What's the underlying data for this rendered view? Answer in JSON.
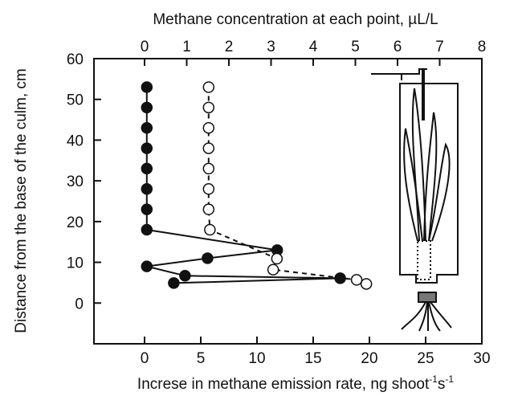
{
  "chart_data": {
    "type": "scatter",
    "x_label_top": "Methane concentration at each point, µL/L",
    "x_label_bottom": [
      "Increse in methane emission rate, ng shoot",
      "-1",
      "s",
      "-1"
    ],
    "y_label": "Distance from the base of the culm, cm",
    "xlim": [
      -4.5,
      30
    ],
    "xticks": [
      0,
      5,
      10,
      15,
      20,
      25,
      30
    ],
    "x2lim": [
      -1.2,
      8
    ],
    "x2ticks": [
      0,
      1,
      2,
      3,
      4,
      5,
      6,
      7,
      8
    ],
    "ylim": [
      -10,
      60
    ],
    "yticks": [
      0,
      10,
      20,
      30,
      40,
      50,
      60
    ],
    "series": [
      {
        "axis": "x",
        "filled": true,
        "color": "#111",
        "x": [
          0.2,
          0.2,
          0.2,
          0.2,
          0.2,
          0.2,
          0.2,
          0.2,
          11.8,
          5.6,
          0.2,
          3.6,
          17.4,
          2.6
        ],
        "y": [
          53,
          48,
          43,
          38,
          33,
          28,
          23,
          18,
          13,
          11,
          9,
          6.7,
          6.1,
          4.9
        ]
      },
      {
        "axis": "x2",
        "filled": false,
        "color": "#111",
        "x": [
          1.52,
          1.52,
          1.52,
          1.52,
          1.52,
          1.52,
          1.52,
          1.55,
          3.14,
          3.05,
          5.03,
          5.26
        ],
        "y": [
          53,
          48,
          43,
          38,
          33,
          28,
          23,
          18,
          10.9,
          8.2,
          5.7,
          4.7
        ]
      }
    ]
  }
}
